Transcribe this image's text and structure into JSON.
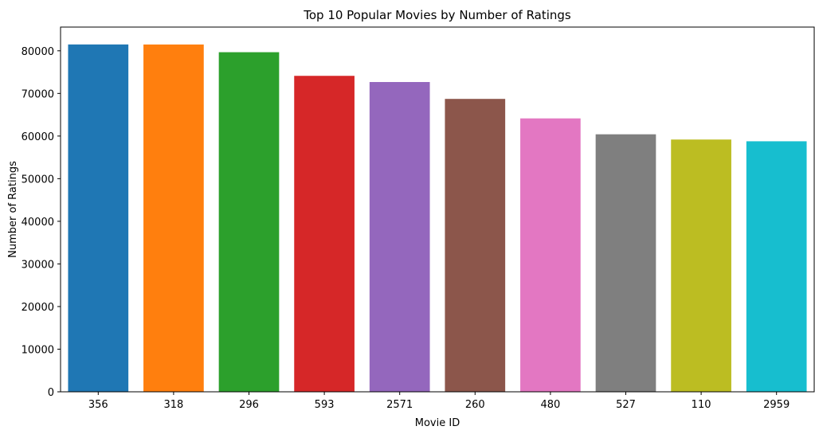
{
  "chart_data": {
    "type": "bar",
    "title": "Top 10 Popular Movies by Number of Ratings",
    "xlabel": "Movie ID",
    "ylabel": "Number of Ratings",
    "categories": [
      "356",
      "318",
      "296",
      "593",
      "2571",
      "260",
      "480",
      "527",
      "110",
      "2959"
    ],
    "values": [
      81491,
      81482,
      79672,
      74127,
      72674,
      68717,
      64144,
      60411,
      59184,
      58773
    ],
    "colors": [
      "#1f77b4",
      "#ff7f0e",
      "#2ca02c",
      "#d62728",
      "#9467bd",
      "#8c564b",
      "#e377c2",
      "#7f7f7f",
      "#bcbd22",
      "#17becf"
    ],
    "ylim": [
      0,
      85567
    ],
    "yticks": [
      0,
      10000,
      20000,
      30000,
      40000,
      50000,
      60000,
      70000,
      80000
    ],
    "grid": false,
    "legend": "none"
  }
}
